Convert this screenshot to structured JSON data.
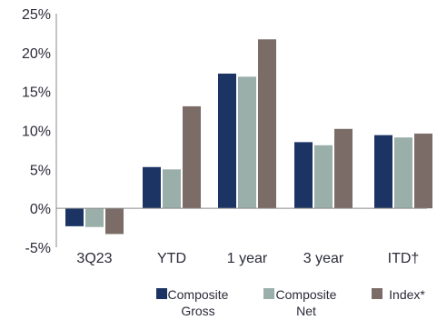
{
  "chart_data": {
    "type": "bar",
    "categories": [
      "3Q23",
      "YTD",
      "1 year",
      "3 year",
      "ITD†"
    ],
    "series": [
      {
        "name": "Composite Gross",
        "name_lines": [
          "Composite",
          "Gross"
        ],
        "color": "#1c3464",
        "values": [
          -2.3,
          5.3,
          17.3,
          8.5,
          9.4
        ]
      },
      {
        "name": "Composite Net",
        "name_lines": [
          "Composite",
          "Net"
        ],
        "color": "#9aaeaa",
        "values": [
          -2.4,
          5.0,
          16.9,
          8.1,
          9.1
        ]
      },
      {
        "name": "Index*",
        "name_lines": [
          "Index*"
        ],
        "color": "#7b6c67",
        "values": [
          -3.3,
          13.1,
          21.7,
          10.2,
          9.6
        ]
      }
    ],
    "y_ticks": [
      {
        "value": -5,
        "label": "-5%"
      },
      {
        "value": 0,
        "label": "0%"
      },
      {
        "value": 5,
        "label": "5%"
      },
      {
        "value": 10,
        "label": "10%"
      },
      {
        "value": 15,
        "label": "15%"
      },
      {
        "value": 20,
        "label": "20%"
      },
      {
        "value": 25,
        "label": "25%"
      }
    ],
    "ylim": [
      -5,
      25
    ],
    "grid": false,
    "legend_position": "bottom-right"
  }
}
